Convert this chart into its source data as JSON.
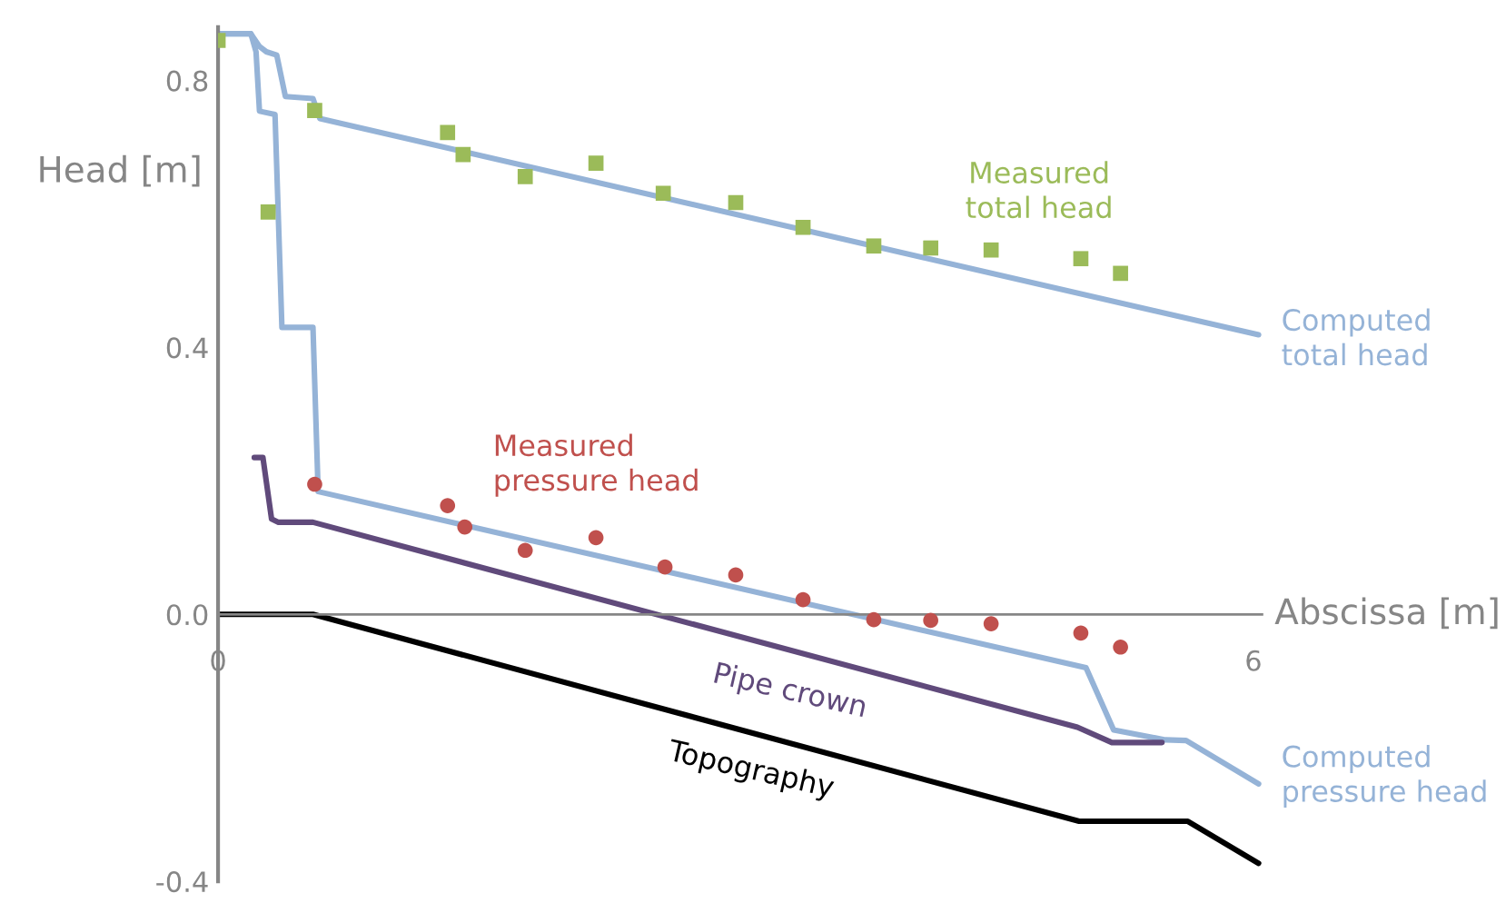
{
  "chart_data": {
    "type": "line",
    "xlabel": "Abscissa [m]",
    "ylabel": "Head [m]",
    "xlim": [
      0,
      6.05
    ],
    "ylim": [
      -0.4,
      0.88
    ],
    "xticks": [
      0,
      6
    ],
    "yticks": [
      {
        "value": -0.4,
        "label": "-0.4"
      },
      {
        "value": 0,
        "label": "0.0"
      },
      0.4,
      0.8
    ],
    "grid": false,
    "legend": false,
    "line_style": "solid",
    "series": [
      {
        "name": "Computed\ntotal head",
        "color": "#95b3d7",
        "x": [
          0,
          0.19,
          0.24,
          0.28,
          0.34,
          0.39,
          0.55,
          0.59,
          6.03
        ],
        "values": [
          0.87,
          0.87,
          0.851,
          0.843,
          0.838,
          0.776,
          0.773,
          0.743,
          0.419
        ]
      },
      {
        "name": "Computed\npressure head",
        "color": "#95b3d7",
        "x": [
          0,
          0.19,
          0.22,
          0.24,
          0.33,
          0.37,
          0.55,
          0.58,
          5.03,
          5.19,
          5.49,
          5.61,
          6.03
        ],
        "values": [
          0.87,
          0.87,
          0.843,
          0.754,
          0.749,
          0.43,
          0.43,
          0.184,
          -0.08,
          -0.173,
          -0.188,
          -0.189,
          -0.254
        ]
      },
      {
        "name": "Pipe crown",
        "color": "#604a7b",
        "x": [
          0.21,
          0.26,
          0.31,
          0.35,
          0.55,
          4.98,
          5.18,
          5.47
        ],
        "values": [
          0.235,
          0.235,
          0.143,
          0.138,
          0.138,
          -0.169,
          -0.192,
          -0.192
        ]
      },
      {
        "name": "Topography",
        "color": "#000000",
        "x": [
          0,
          0.55,
          4.99,
          5.62,
          6.03
        ],
        "values": [
          0,
          0,
          -0.31,
          -0.31,
          -0.373
        ]
      },
      {
        "name": "Measured\ntotal head",
        "type": "scatter",
        "marker": "square",
        "color": "#9bbb59",
        "x": [
          0,
          0.29,
          0.56,
          1.33,
          1.42,
          1.78,
          2.19,
          2.58,
          3.0,
          3.39,
          3.8,
          4.13,
          4.48,
          5.0,
          5.23
        ],
        "values": [
          0.86,
          0.603,
          0.755,
          0.722,
          0.689,
          0.656,
          0.676,
          0.631,
          0.617,
          0.58,
          0.552,
          0.549,
          0.546,
          0.533,
          0.511
        ]
      },
      {
        "name": "Measured\npressure head",
        "type": "scatter",
        "marker": "circle",
        "color": "#c0504d",
        "x": [
          0.56,
          1.33,
          1.43,
          1.78,
          2.19,
          2.59,
          3.0,
          3.39,
          3.8,
          4.13,
          4.48,
          5.0,
          5.23
        ],
        "values": [
          0.195,
          0.163,
          0.131,
          0.096,
          0.115,
          0.071,
          0.059,
          0.022,
          -0.008,
          -0.009,
          -0.014,
          -0.028,
          -0.049
        ]
      }
    ]
  }
}
